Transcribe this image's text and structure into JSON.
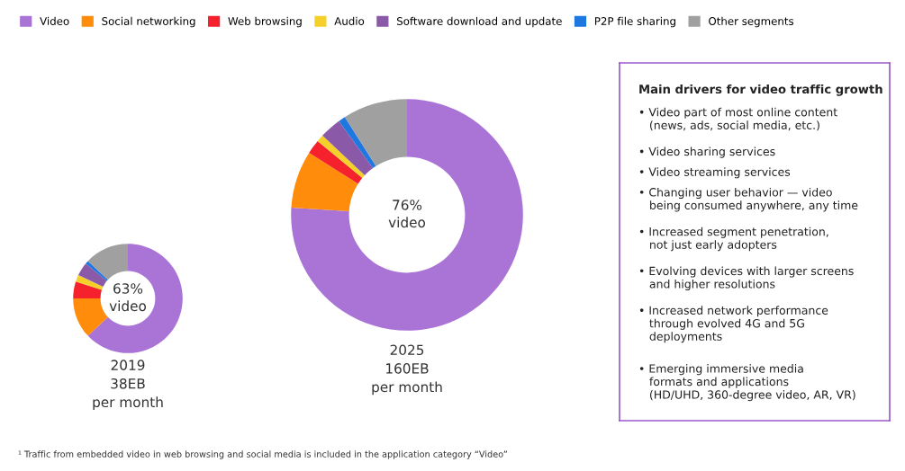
{
  "chart_data": [
    {
      "type": "donut",
      "categories": [
        "Video",
        "Social networking",
        "Web browsing",
        "Audio",
        "Software download and update",
        "P2P file sharing",
        "Other segments"
      ],
      "values": [
        63,
        12,
        5,
        2,
        4,
        1,
        13
      ],
      "colors": [
        "#a974d6",
        "#ff8c0a",
        "#f5212d",
        "#f5d02a",
        "#8a5aa8",
        "#1f77e0",
        "#a0a0a0"
      ],
      "legend": "top",
      "annotations": [
        "63%\nvideo"
      ],
      "xlabel": "2019\n38EB\nper month"
    },
    {
      "type": "donut",
      "values": [
        76,
        8,
        2,
        1,
        3,
        1,
        9
      ],
      "categories": [
        null,
        null,
        null,
        null,
        null,
        null,
        null
      ],
      "colors": [
        "#a974d6",
        "#ff8c0a",
        "#f5212d",
        "#f5d02a",
        "#8a5aa8",
        "#1f77e0",
        "#a0a0a0"
      ],
      "annotations": [
        "76%\nvideo"
      ],
      "xlabel": "2025\n160EB\nper month"
    },
    {
      "type": "other",
      "title": "Main drivers for video traffic growth",
      "annotations": [
        "• Video part of most online content\n   (news, ads, social media, etc.)",
        "• Video sharing services",
        "• Video streaming services",
        "• Changing user behavior — video\n   being consumed anywhere, any time",
        "• Increased segment penetration,\n   not just early adopters",
        "• Evolving devices with larger screens\n   and higher resolutions",
        "• Increased network performance\n   through evolved 4G and 5G\n   deployments",
        "• Emerging immersive media\n   formats and applications\n   (HD/UHD, 360-degree video, AR, VR)"
      ]
    },
    {
      "type": "other",
      "annotations": [
        "¹ Traffic from embedded video in web browsing and social media is included in the application category “Video”"
      ]
    }
  ]
}
